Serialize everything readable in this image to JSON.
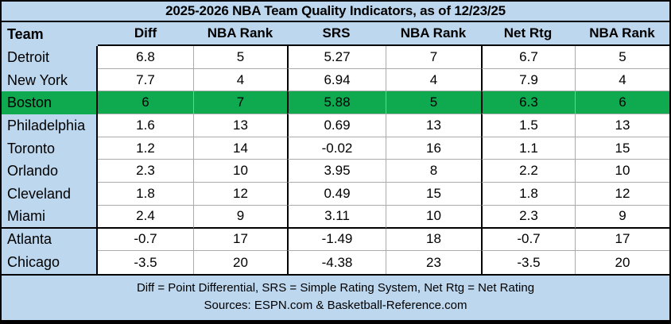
{
  "chart_data": {
    "type": "table",
    "title": "2025-2026 NBA Team Quality Indicators, as of 12/23/25",
    "columns": [
      "Team",
      "Diff",
      "NBA Rank",
      "SRS",
      "NBA Rank",
      "Net Rtg",
      "NBA Rank"
    ],
    "rows": [
      {
        "cells": [
          "Detroit",
          "6.8",
          "5",
          "5.27",
          "7",
          "6.7",
          "5"
        ],
        "highlight": false
      },
      {
        "cells": [
          "New York",
          "7.7",
          "4",
          "6.94",
          "4",
          "7.9",
          "4"
        ],
        "highlight": false
      },
      {
        "cells": [
          "Boston",
          "6",
          "7",
          "5.88",
          "5",
          "6.3",
          "6"
        ],
        "highlight": true
      },
      {
        "cells": [
          "Philadelphia",
          "1.6",
          "13",
          "0.69",
          "13",
          "1.5",
          "13"
        ],
        "highlight": false
      },
      {
        "cells": [
          "Toronto",
          "1.2",
          "14",
          "-0.02",
          "16",
          "1.1",
          "15"
        ],
        "highlight": false
      },
      {
        "cells": [
          "Orlando",
          "2.3",
          "10",
          "3.95",
          "8",
          "2.2",
          "10"
        ],
        "highlight": false
      },
      {
        "cells": [
          "Cleveland",
          "1.8",
          "12",
          "0.49",
          "15",
          "1.8",
          "12"
        ],
        "highlight": false
      },
      {
        "cells": [
          "Miami",
          "2.4",
          "9",
          "3.11",
          "10",
          "2.3",
          "9"
        ],
        "highlight": false
      },
      {
        "cells": [
          "Atlanta",
          "-0.7",
          "17",
          "-1.49",
          "18",
          "-0.7",
          "17"
        ],
        "highlight": false
      },
      {
        "cells": [
          "Chicago",
          "-3.5",
          "20",
          "-4.38",
          "23",
          "-3.5",
          "20"
        ],
        "highlight": false
      }
    ],
    "highlighted_team": "Boston",
    "legend_note": "Diff = Point Differential, SRS = Simple Rating System, Net Rtg = Net Rating",
    "sources_note": "Sources: ESPN.com & Basketball-Reference.com"
  },
  "colors": {
    "background": "#BDD7EE",
    "cell_background": "#FFFFFF",
    "highlight_green": "#0FA94F",
    "gridline": "#ABABAB",
    "border": "#000000",
    "text": "#000000"
  }
}
